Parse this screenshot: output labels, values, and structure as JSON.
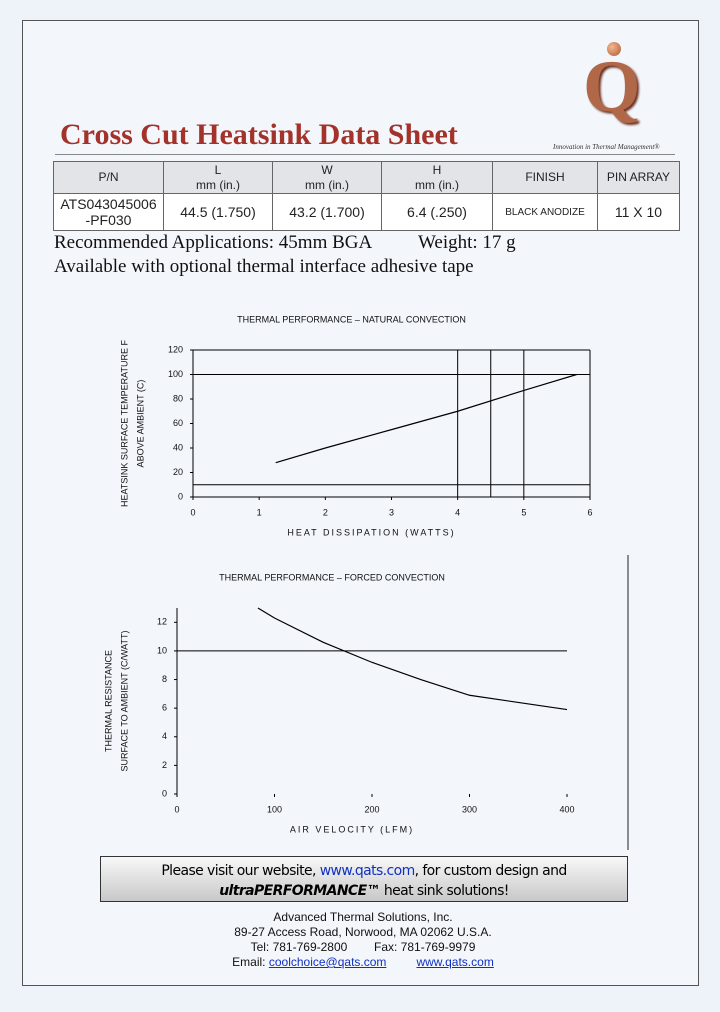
{
  "header": {
    "title": "Cross Cut Heatsink Data Sheet",
    "logo": "Q",
    "tagline": "Innovation in Thermal Management®"
  },
  "table": {
    "columns": [
      [
        "P/N"
      ],
      [
        "L",
        "mm (in.)"
      ],
      [
        "W",
        "mm (in.)"
      ],
      [
        "H",
        "mm (in.)"
      ],
      [
        "FINISH"
      ],
      [
        "PIN ARRAY"
      ]
    ],
    "rows": [
      [
        [
          "ATS043045006",
          "-PF030"
        ],
        [
          "44.5  (1.750)"
        ],
        [
          "43.2  (1.700)"
        ],
        [
          "6.4  (.250)"
        ],
        [
          "BLACK ANODIZE"
        ],
        [
          "11 X 10"
        ]
      ]
    ]
  },
  "notes": {
    "applications": "Recommended Applications: 45mm BGA",
    "weight": "Weight: 17 g",
    "option": "Available with optional thermal interface adhesive tape"
  },
  "chart_data": [
    {
      "type": "line",
      "title": "THERMAL PERFORMANCE – NATURAL CONVECTION",
      "x_label": "HEAT DISSIPATION (WATTS)",
      "y_label": [
        "HEATSINK SURFACE TEMPERATURE F",
        "ABOVE AMBIENT (C)"
      ],
      "x": [
        1.25,
        2,
        3,
        4,
        5,
        5.8
      ],
      "series": [
        {
          "color": "#000000",
          "values": [
            28,
            40,
            55,
            70,
            87,
            100
          ]
        }
      ],
      "xlim": [
        0,
        6
      ],
      "ylim": [
        0,
        120
      ],
      "xticks": [
        0,
        1,
        2,
        3,
        4,
        5,
        6
      ],
      "yticks": [
        0,
        20,
        40,
        60,
        80,
        100,
        120
      ],
      "x_reference_lines": [
        4,
        4.5,
        5
      ],
      "y_reference_lines": [
        10,
        100
      ]
    },
    {
      "type": "line",
      "title": "THERMAL PERFORMANCE – FORCED CONVECTION",
      "x_label": "AIR VELOCITY (LFM)",
      "y_label": [
        "THERMAL RESISTANCE",
        "SURFACE TO AMBIENT (C/WATT)"
      ],
      "x": [
        83,
        100,
        150,
        200,
        250,
        300,
        350,
        400
      ],
      "series": [
        {
          "color": "#000000",
          "values": [
            13,
            12.3,
            10.6,
            9.2,
            8.0,
            6.9,
            6.4,
            5.9
          ]
        }
      ],
      "xlim": [
        0,
        400
      ],
      "ylim": [
        0,
        13
      ],
      "xticks": [
        0,
        100,
        200,
        300,
        400
      ],
      "yticks": [
        0,
        2,
        4,
        6,
        8,
        10,
        12
      ],
      "x_reference_lines": [],
      "y_reference_lines": [
        10
      ]
    }
  ],
  "footer": {
    "banner": {
      "line1_start": "Please visit our website, ",
      "link": "www.qats.com",
      "line1_end": ", for custom design and",
      "brand": "ultraPERFORMANCE™",
      "line2_end": " heat sink solutions!"
    },
    "company": "Advanced Thermal Solutions, Inc.",
    "address": "89-27 Access Road, Norwood, MA 02062 U.S.A.",
    "tel": "Tel:  781-769-2800",
    "fax": "Fax: 781-769-9979",
    "email_label": "Email: ",
    "email": "coolchoice@qats.com",
    "website": "www.qats.com"
  }
}
